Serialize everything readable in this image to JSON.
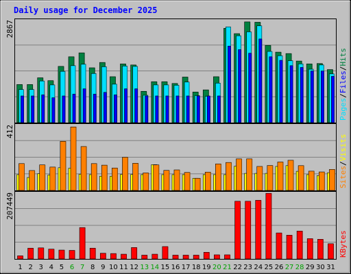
{
  "chart_data": {
    "type": "bar",
    "title": "Daily usage for December 2025",
    "categories": [
      "1",
      "2",
      "3",
      "4",
      "5",
      "6",
      "7",
      "8",
      "9",
      "10",
      "11",
      "12",
      "13",
      "14",
      "15",
      "16",
      "17",
      "18",
      "19",
      "20",
      "21",
      "22",
      "23",
      "24",
      "25",
      "26",
      "27",
      "28",
      "29",
      "30",
      "31"
    ],
    "weekend_days": [
      "6",
      "7",
      "13",
      "14",
      "20",
      "21",
      "27",
      "28"
    ],
    "panels": [
      {
        "id": "hits-files-pages",
        "max_label": "2867",
        "ylim": [
          0,
          2867
        ],
        "legend": [
          "Pages",
          "/",
          "Files",
          "/",
          "Hits"
        ],
        "grid": true,
        "series": [
          {
            "name": "Hits",
            "color": "#008040",
            "values": [
              1070,
              1070,
              1260,
              1180,
              1580,
              1850,
              1960,
              1540,
              1690,
              1290,
              1650,
              1620,
              880,
              1150,
              1150,
              1100,
              1280,
              860,
              920,
              1290,
              2650,
              2500,
              2830,
              2820,
              2170,
              1980,
              1940,
              1730,
              1650,
              1660,
              1490
            ]
          },
          {
            "name": "Files",
            "color": "#00e0ff",
            "values": [
              930,
              930,
              1170,
              1060,
              1440,
              1600,
              1640,
              1380,
              1570,
              1080,
              1590,
              1580,
              770,
              1060,
              1060,
              1050,
              1140,
              760,
              740,
              1110,
              2690,
              2440,
              2550,
              2720,
              2000,
              1880,
              1740,
              1650,
              1500,
              1620,
              1370
            ]
          },
          {
            "name": "Pages",
            "color": "#0000ff",
            "values": [
              750,
              750,
              780,
              700,
              750,
              800,
              950,
              800,
              850,
              780,
              950,
              950,
              750,
              750,
              750,
              750,
              750,
              750,
              750,
              750,
              2150,
              2050,
              1950,
              2350,
              1850,
              1750,
              1600,
              1550,
              1450,
              1450,
              1300
            ]
          }
        ]
      },
      {
        "id": "visits-sites",
        "max_label": "412",
        "ylim": [
          0,
          412
        ],
        "legend": [
          "Sites",
          "/",
          "Visits"
        ],
        "grid": true,
        "series": [
          {
            "name": "Visits",
            "color": "#ff8000",
            "values": [
              170,
              126,
              162,
              148,
              311,
              402,
              278,
              170,
              160,
              142,
              210,
              172,
              111,
              162,
              127,
              130,
              114,
              77,
              116,
              168,
              177,
              200,
              200,
              152,
              158,
              180,
              191,
              157,
              122,
              117,
              133
            ]
          },
          {
            "name": "Sites",
            "color": "#ffff00",
            "values": [
              100,
              82,
              106,
              98,
              144,
              141,
              103,
              100,
              90,
              90,
              101,
              101,
              100,
              163,
              100,
              100,
              100,
              77,
              100,
              100,
              100,
              153,
              108,
              108,
              108,
              152,
              157,
              121,
              100,
              94,
              112
            ]
          }
        ]
      },
      {
        "id": "kbytes",
        "max_label": "207449",
        "ylim": [
          0,
          207449
        ],
        "legend": [
          "KBytes"
        ],
        "grid": true,
        "series": [
          {
            "name": "KBytes",
            "color": "#ff0000",
            "values": [
              9800,
              34000,
              35000,
              31000,
              28000,
              27000,
              99000,
              34000,
              18000,
              17000,
              15000,
              36000,
              12000,
              15000,
              39000,
              12000,
              12000,
              12000,
              21000,
              13000,
              13000,
              182000,
              182000,
              185000,
              207000,
              82000,
              75000,
              88000,
              64000,
              62000,
              48000
            ]
          }
        ]
      }
    ]
  }
}
